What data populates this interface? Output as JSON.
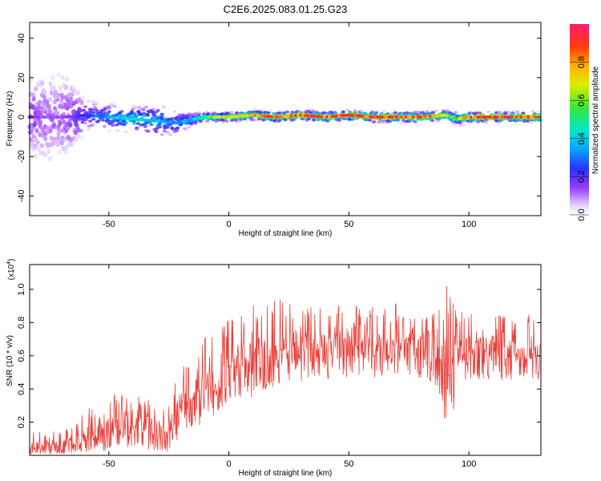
{
  "title": "C2E6.2025.083.01.25.G23",
  "colorbar": {
    "label": "Normalized spectral amplitude",
    "ticks": [
      "0.0",
      "0.2",
      "0.4",
      "0.6",
      "0.8"
    ],
    "tick_values": [
      0.0,
      0.2,
      0.4,
      0.6,
      0.8
    ],
    "range": [
      0.0,
      1.0
    ]
  },
  "chart_data": [
    {
      "type": "heatmap",
      "xlabel": "Height of straight line (km)",
      "ylabel": "Frequency (Hz)",
      "xlim": [
        -83,
        130
      ],
      "ylim": [
        -50,
        48
      ],
      "xticks": [
        -50,
        0,
        50,
        100
      ],
      "xtick_labels": [
        "-50",
        "0",
        "50",
        "100"
      ],
      "yticks": [
        -40,
        -20,
        0,
        20,
        40
      ],
      "ytick_labels": [
        "-40",
        "-20",
        "0",
        "20",
        "40"
      ],
      "ridge_profile": {
        "x": [
          -83,
          -75,
          -68,
          -60,
          -50,
          -40,
          -30,
          -22,
          -15,
          -10,
          0,
          10,
          20,
          30,
          40,
          50,
          60,
          70,
          80,
          90,
          95,
          100,
          110,
          120,
          130
        ],
        "freq": [
          0,
          0,
          0,
          1,
          0,
          -1,
          -2,
          -3,
          -1,
          0,
          0,
          1,
          0,
          1,
          0,
          1,
          0,
          0,
          0,
          1,
          -1,
          0,
          0,
          0,
          0
        ],
        "amplitude": [
          0.15,
          0.12,
          0.15,
          0.25,
          0.35,
          0.45,
          0.4,
          0.3,
          0.4,
          0.55,
          0.7,
          0.75,
          0.8,
          0.85,
          0.85,
          0.9,
          0.9,
          0.9,
          0.85,
          0.7,
          0.6,
          0.85,
          0.9,
          0.9,
          0.85
        ],
        "spread_hz": [
          30,
          35,
          30,
          10,
          8,
          8,
          10,
          8,
          4,
          3,
          3,
          3,
          3,
          3,
          3,
          3,
          3,
          3,
          3,
          3,
          4,
          3,
          3,
          3,
          3
        ]
      }
    },
    {
      "type": "line",
      "xlabel": "Height of straight line (km)",
      "ylabel": "SNR (10 * v/v)",
      "y_multiplier": "(x10",
      "y_multiplier_exp": "4",
      "y_multiplier_close": ")",
      "xlim": [
        -83,
        130
      ],
      "ylim": [
        0.0,
        1.15
      ],
      "xticks": [
        -50,
        0,
        50,
        100
      ],
      "xtick_labels": [
        "-50",
        "0",
        "50",
        "100"
      ],
      "yticks": [
        0.2,
        0.4,
        0.6,
        0.8,
        1.0
      ],
      "ytick_labels": [
        "0.2",
        "0.4",
        "0.6",
        "0.8",
        "1.0"
      ],
      "series": [
        {
          "color": "#e8403a",
          "x": [
            -83,
            -75,
            -65,
            -60,
            -55,
            -50,
            -45,
            -40,
            -35,
            -30,
            -25,
            -22,
            -20,
            -15,
            -10,
            -5,
            0,
            5,
            10,
            15,
            20,
            25,
            30,
            35,
            40,
            45,
            50,
            55,
            60,
            65,
            70,
            75,
            80,
            85,
            88,
            90,
            92,
            94,
            96,
            100,
            105,
            110,
            115,
            120,
            125,
            130
          ],
          "mean": [
            0.04,
            0.05,
            0.06,
            0.1,
            0.14,
            0.17,
            0.19,
            0.2,
            0.18,
            0.16,
            0.14,
            0.22,
            0.28,
            0.35,
            0.4,
            0.44,
            0.48,
            0.52,
            0.57,
            0.59,
            0.61,
            0.62,
            0.63,
            0.64,
            0.65,
            0.66,
            0.65,
            0.66,
            0.66,
            0.66,
            0.66,
            0.67,
            0.66,
            0.65,
            0.6,
            0.48,
            0.35,
            0.5,
            0.6,
            0.63,
            0.64,
            0.63,
            0.63,
            0.62,
            0.61,
            0.62
          ],
          "max": [
            0.14,
            0.15,
            0.18,
            0.28,
            0.32,
            0.38,
            0.37,
            0.36,
            0.35,
            0.3,
            0.3,
            0.48,
            0.52,
            0.62,
            0.72,
            0.8,
            0.82,
            0.85,
            0.92,
            0.92,
            0.96,
            0.92,
            0.88,
            0.9,
            0.9,
            0.93,
            0.92,
            0.9,
            0.91,
            0.9,
            0.92,
            0.88,
            0.89,
            0.9,
            0.95,
            1.15,
            1.0,
            0.92,
            0.88,
            0.87,
            0.86,
            0.88,
            0.84,
            0.84,
            0.86,
            0.84
          ],
          "min": [
            0.01,
            0.01,
            0.01,
            0.02,
            0.02,
            0.03,
            0.03,
            0.04,
            0.03,
            0.03,
            0.02,
            0.03,
            0.1,
            0.16,
            0.2,
            0.24,
            0.28,
            0.32,
            0.35,
            0.4,
            0.42,
            0.44,
            0.44,
            0.45,
            0.46,
            0.46,
            0.46,
            0.47,
            0.46,
            0.45,
            0.47,
            0.46,
            0.45,
            0.44,
            0.35,
            0.18,
            0.12,
            0.28,
            0.4,
            0.45,
            0.46,
            0.46,
            0.45,
            0.44,
            0.45,
            0.46
          ]
        }
      ]
    }
  ]
}
